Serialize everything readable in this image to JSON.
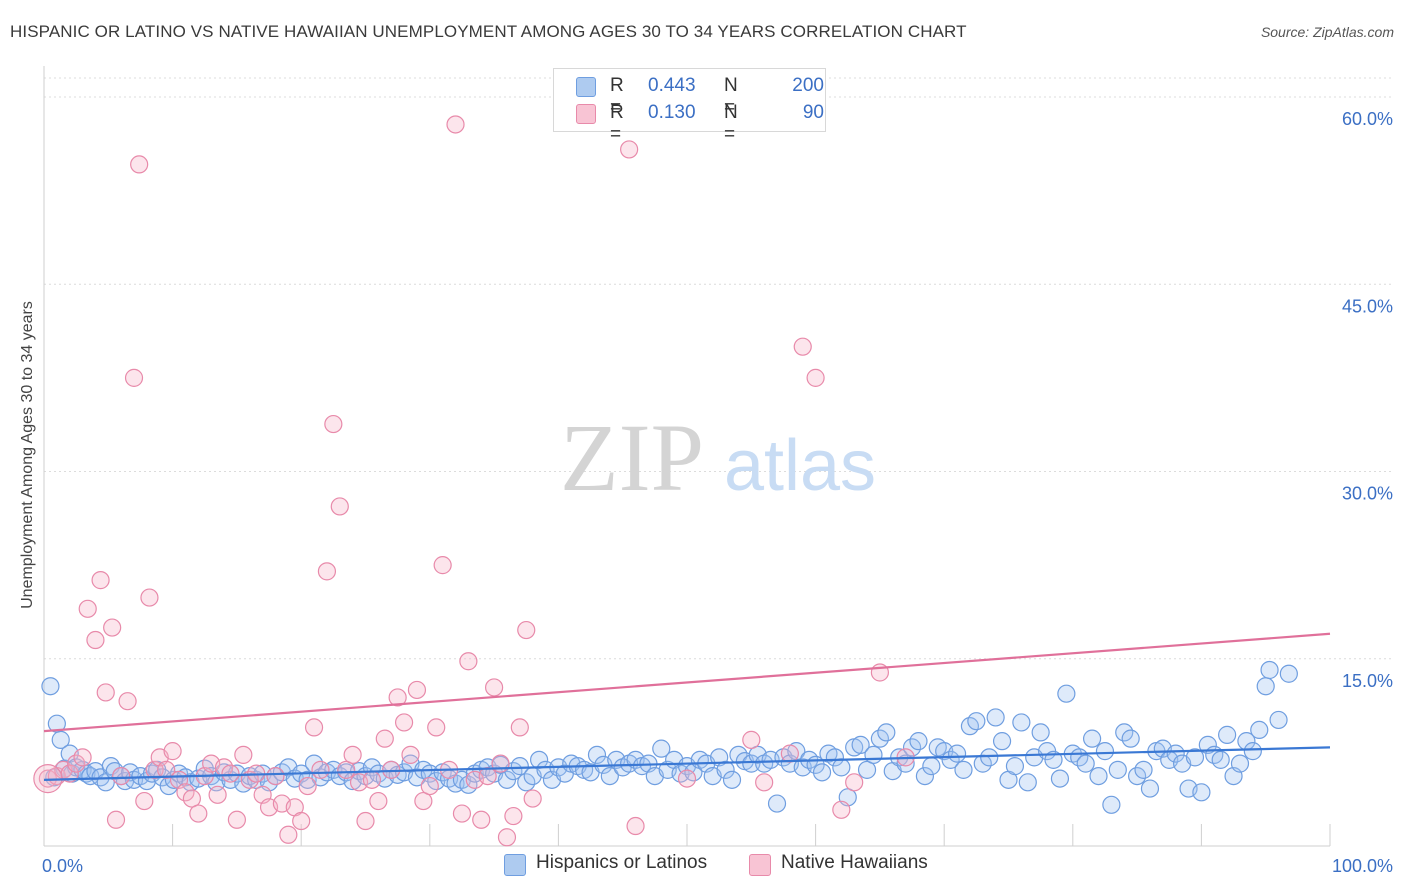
{
  "title": "HISPANIC OR LATINO VS NATIVE HAWAIIAN UNEMPLOYMENT AMONG AGES 30 TO 34 YEARS CORRELATION CHART",
  "source": "Source: ZipAtlas.com",
  "watermark": {
    "zip": "ZIP",
    "atlas": "atlas"
  },
  "legend": {
    "series1": {
      "r_label": "R =",
      "r_value": "0.443",
      "n_label": "N =",
      "n_value": "200",
      "color": "#aecbf0",
      "border": "#6f9ee0"
    },
    "series2": {
      "r_label": "R =",
      "r_value": "0.130",
      "n_label": "N =",
      "n_value": "90",
      "color": "#f8c4d4",
      "border": "#e88aaa"
    }
  },
  "bottom_legend": [
    "Hispanics or Latinos",
    "Native Hawaiians"
  ],
  "chart_data": {
    "type": "scatter",
    "xlabel": "",
    "ylabel": "Unemployment Among Ages 30 to 34 years",
    "xlim": [
      0,
      100
    ],
    "ylim": [
      0,
      62
    ],
    "x_tick_labels": [
      {
        "value": 0,
        "label": "0.0%"
      },
      {
        "value": 100,
        "label": "100.0%"
      }
    ],
    "y_tick_labels": [
      {
        "value": 15,
        "label": "15.0%"
      },
      {
        "value": 30,
        "label": "30.0%"
      },
      {
        "value": 45,
        "label": "45.0%"
      },
      {
        "value": 60,
        "label": "60.0%"
      }
    ],
    "grid": true,
    "series": [
      {
        "name": "Hispanics or Latinos",
        "color": "#6f9ee0",
        "fill": "rgba(160,195,240,0.35)",
        "trend": {
          "x": [
            0,
            100
          ],
          "y": [
            5.3,
            7.9
          ],
          "color": "#3a78d4"
        },
        "points": [
          [
            0.5,
            12.8
          ],
          [
            0.8,
            5.5
          ],
          [
            1,
            9.8
          ],
          [
            1.3,
            8.5
          ],
          [
            1.6,
            6.2
          ],
          [
            2,
            7.4
          ],
          [
            2.2,
            5.8
          ],
          [
            2.5,
            6.3
          ],
          [
            3,
            6.1
          ],
          [
            3.3,
            5.8
          ],
          [
            3.6,
            5.6
          ],
          [
            4,
            6
          ],
          [
            4.4,
            5.5
          ],
          [
            4.8,
            5.1
          ],
          [
            5.2,
            6.4
          ],
          [
            5.5,
            6
          ],
          [
            6,
            5.6
          ],
          [
            6.3,
            5.2
          ],
          [
            6.7,
            5.9
          ],
          [
            7,
            5.3
          ],
          [
            7.5,
            5.6
          ],
          [
            8,
            5.2
          ],
          [
            8.4,
            5.8
          ],
          [
            8.8,
            6.1
          ],
          [
            9.2,
            5.5
          ],
          [
            9.7,
            4.8
          ],
          [
            10.1,
            5.3
          ],
          [
            10.5,
            5.8
          ],
          [
            11,
            5.5
          ],
          [
            11.4,
            5.1
          ],
          [
            12,
            5.4
          ],
          [
            12.5,
            6.2
          ],
          [
            13,
            5.6
          ],
          [
            13.4,
            5.1
          ],
          [
            14,
            5.9
          ],
          [
            14.5,
            5.3
          ],
          [
            15,
            5.8
          ],
          [
            15.5,
            5
          ],
          [
            16,
            5.6
          ],
          [
            16.5,
            5.3
          ],
          [
            17,
            5.8
          ],
          [
            17.5,
            5.1
          ],
          [
            18,
            5.6
          ],
          [
            18.5,
            5.9
          ],
          [
            19,
            6.3
          ],
          [
            19.5,
            5.4
          ],
          [
            20,
            5.8
          ],
          [
            20.5,
            5.3
          ],
          [
            21,
            6.6
          ],
          [
            21.5,
            5.5
          ],
          [
            22,
            5.9
          ],
          [
            22.5,
            6.1
          ],
          [
            23,
            5.6
          ],
          [
            23.5,
            5.9
          ],
          [
            24,
            5.2
          ],
          [
            24.5,
            6
          ],
          [
            25,
            5.6
          ],
          [
            25.5,
            6.3
          ],
          [
            26,
            5.8
          ],
          [
            26.5,
            5.4
          ],
          [
            27,
            6.1
          ],
          [
            27.5,
            5.7
          ],
          [
            28,
            5.9
          ],
          [
            28.5,
            6.6
          ],
          [
            29,
            5.5
          ],
          [
            29.5,
            6.1
          ],
          [
            30,
            5.8
          ],
          [
            30.5,
            5.2
          ],
          [
            31,
            5.9
          ],
          [
            31.5,
            5.4
          ],
          [
            32,
            5
          ],
          [
            32.5,
            5.3
          ],
          [
            33,
            4.9
          ],
          [
            33.5,
            5.8
          ],
          [
            34,
            6.1
          ],
          [
            34.5,
            6.3
          ],
          [
            35,
            5.8
          ],
          [
            35.5,
            6.5
          ],
          [
            36,
            5.3
          ],
          [
            36.5,
            6
          ],
          [
            37,
            6.4
          ],
          [
            37.5,
            5.1
          ],
          [
            38,
            5.6
          ],
          [
            38.5,
            6.9
          ],
          [
            39,
            6.1
          ],
          [
            39.5,
            5.3
          ],
          [
            40,
            6.3
          ],
          [
            40.5,
            5.8
          ],
          [
            41,
            6.6
          ],
          [
            41.5,
            6.4
          ],
          [
            42,
            6.1
          ],
          [
            42.5,
            5.9
          ],
          [
            43,
            7.3
          ],
          [
            43.5,
            6.5
          ],
          [
            44,
            5.6
          ],
          [
            44.5,
            6.9
          ],
          [
            45,
            6.3
          ],
          [
            45.5,
            6.6
          ],
          [
            46,
            6.9
          ],
          [
            46.5,
            6.4
          ],
          [
            47,
            6.6
          ],
          [
            47.5,
            5.6
          ],
          [
            48,
            7.8
          ],
          [
            48.5,
            6.1
          ],
          [
            49,
            6.9
          ],
          [
            49.5,
            5.8
          ],
          [
            50,
            6.4
          ],
          [
            50.5,
            5.9
          ],
          [
            51,
            6.9
          ],
          [
            51.5,
            6.6
          ],
          [
            52,
            5.6
          ],
          [
            52.5,
            7.1
          ],
          [
            53,
            6.1
          ],
          [
            53.5,
            5.3
          ],
          [
            54,
            7.3
          ],
          [
            54.5,
            6.8
          ],
          [
            55,
            6.6
          ],
          [
            55.5,
            7.3
          ],
          [
            56,
            6.6
          ],
          [
            56.5,
            6.9
          ],
          [
            57,
            3.4
          ],
          [
            57.5,
            7.1
          ],
          [
            58,
            6.6
          ],
          [
            58.5,
            7.6
          ],
          [
            59,
            6.3
          ],
          [
            59.5,
            6.9
          ],
          [
            60,
            6.5
          ],
          [
            60.5,
            5.9
          ],
          [
            61,
            7.4
          ],
          [
            61.5,
            7.1
          ],
          [
            62,
            6.3
          ],
          [
            62.5,
            3.9
          ],
          [
            63,
            7.9
          ],
          [
            63.5,
            8.1
          ],
          [
            64,
            6.1
          ],
          [
            64.5,
            7.3
          ],
          [
            65,
            8.6
          ],
          [
            65.5,
            9.1
          ],
          [
            66,
            6
          ],
          [
            66.5,
            7.1
          ],
          [
            67,
            6.6
          ],
          [
            67.5,
            7.9
          ],
          [
            68,
            8.4
          ],
          [
            68.5,
            5.6
          ],
          [
            69,
            6.4
          ],
          [
            69.5,
            7.9
          ],
          [
            70,
            7.6
          ],
          [
            70.5,
            6.9
          ],
          [
            71,
            7.4
          ],
          [
            71.5,
            6.1
          ],
          [
            72,
            9.6
          ],
          [
            72.5,
            10
          ],
          [
            73,
            6.6
          ],
          [
            73.5,
            7.1
          ],
          [
            74,
            10.3
          ],
          [
            74.5,
            8.4
          ],
          [
            75,
            5.3
          ],
          [
            75.5,
            6.4
          ],
          [
            76,
            9.9
          ],
          [
            76.5,
            5.1
          ],
          [
            77,
            7.1
          ],
          [
            77.5,
            9.1
          ],
          [
            78,
            7.6
          ],
          [
            78.5,
            6.9
          ],
          [
            79,
            5.4
          ],
          [
            79.5,
            12.2
          ],
          [
            80,
            7.4
          ],
          [
            80.5,
            7.1
          ],
          [
            81,
            6.6
          ],
          [
            81.5,
            8.6
          ],
          [
            82,
            5.6
          ],
          [
            82.5,
            7.6
          ],
          [
            83,
            3.3
          ],
          [
            83.5,
            6.1
          ],
          [
            84,
            9.1
          ],
          [
            84.5,
            8.6
          ],
          [
            85,
            5.6
          ],
          [
            85.5,
            6.1
          ],
          [
            86,
            4.6
          ],
          [
            86.5,
            7.6
          ],
          [
            87,
            7.8
          ],
          [
            87.5,
            6.9
          ],
          [
            88,
            7.4
          ],
          [
            88.5,
            6.6
          ],
          [
            89,
            4.6
          ],
          [
            89.5,
            7.1
          ],
          [
            90,
            4.3
          ],
          [
            90.5,
            8.1
          ],
          [
            91,
            7.3
          ],
          [
            91.5,
            6.9
          ],
          [
            92,
            8.9
          ],
          [
            92.5,
            5.6
          ],
          [
            93,
            6.6
          ],
          [
            93.5,
            8.4
          ],
          [
            94,
            7.6
          ],
          [
            94.5,
            9.3
          ],
          [
            95,
            12.8
          ],
          [
            95.3,
            14.1
          ],
          [
            96,
            10.1
          ],
          [
            96.8,
            13.8
          ]
        ]
      },
      {
        "name": "Native Hawaiians",
        "color": "#e88aaa",
        "fill": "rgba(245,180,200,0.35)",
        "trend": {
          "x": [
            0,
            100
          ],
          "y": [
            9.2,
            17.0
          ],
          "color": "#e0709a"
        },
        "points": [
          [
            0.3,
            5.4
          ],
          [
            1,
            5.6
          ],
          [
            1.5,
            6.1
          ],
          [
            2,
            5.8
          ],
          [
            2.5,
            6.6
          ],
          [
            3,
            7.1
          ],
          [
            3.4,
            19
          ],
          [
            4,
            16.5
          ],
          [
            4.4,
            21.3
          ],
          [
            4.8,
            12.3
          ],
          [
            5.3,
            17.5
          ],
          [
            5.6,
            2.1
          ],
          [
            6,
            5.6
          ],
          [
            6.5,
            11.6
          ],
          [
            7,
            37.5
          ],
          [
            7.4,
            54.6
          ],
          [
            7.8,
            3.6
          ],
          [
            8.2,
            19.9
          ],
          [
            8.6,
            6.1
          ],
          [
            9,
            7.1
          ],
          [
            9.5,
            6.1
          ],
          [
            10,
            7.6
          ],
          [
            10.5,
            5.3
          ],
          [
            11,
            4.3
          ],
          [
            11.5,
            3.8
          ],
          [
            12,
            2.6
          ],
          [
            12.5,
            5.6
          ],
          [
            13,
            6.6
          ],
          [
            13.5,
            4.1
          ],
          [
            14,
            6.3
          ],
          [
            14.5,
            5.8
          ],
          [
            15,
            2.1
          ],
          [
            15.5,
            7.3
          ],
          [
            16,
            5.3
          ],
          [
            16.5,
            5.8
          ],
          [
            17,
            4.1
          ],
          [
            17.5,
            3.1
          ],
          [
            18,
            5.6
          ],
          [
            18.5,
            3.4
          ],
          [
            19,
            0.9
          ],
          [
            19.5,
            3.1
          ],
          [
            20,
            2
          ],
          [
            20.5,
            4.8
          ],
          [
            21,
            9.5
          ],
          [
            21.5,
            6.1
          ],
          [
            22,
            22
          ],
          [
            22.5,
            33.8
          ],
          [
            23,
            27.2
          ],
          [
            23.5,
            6.1
          ],
          [
            24,
            7.3
          ],
          [
            24.5,
            5.1
          ],
          [
            25,
            2
          ],
          [
            25.5,
            5.3
          ],
          [
            26,
            3.6
          ],
          [
            26.5,
            8.6
          ],
          [
            27,
            6.1
          ],
          [
            27.5,
            11.9
          ],
          [
            28,
            9.9
          ],
          [
            28.5,
            7.3
          ],
          [
            29,
            12.5
          ],
          [
            29.5,
            3.6
          ],
          [
            30,
            4.8
          ],
          [
            30.5,
            9.5
          ],
          [
            31,
            22.5
          ],
          [
            31.5,
            6.1
          ],
          [
            32,
            57.8
          ],
          [
            32.5,
            2.6
          ],
          [
            33,
            14.8
          ],
          [
            33.5,
            5.3
          ],
          [
            34,
            2.1
          ],
          [
            34.5,
            5.6
          ],
          [
            35,
            12.7
          ],
          [
            35.5,
            6.6
          ],
          [
            36,
            0.7
          ],
          [
            36.5,
            2.4
          ],
          [
            37,
            9.5
          ],
          [
            37.5,
            17.3
          ],
          [
            38,
            3.8
          ],
          [
            45.5,
            55.8
          ],
          [
            46,
            1.6
          ],
          [
            50,
            5.4
          ],
          [
            55,
            8.5
          ],
          [
            56,
            5.1
          ],
          [
            58,
            7.4
          ],
          [
            59,
            40
          ],
          [
            60,
            37.5
          ],
          [
            62,
            2.9
          ],
          [
            63,
            5.1
          ],
          [
            65,
            13.9
          ],
          [
            67,
            7.1
          ]
        ]
      }
    ]
  }
}
